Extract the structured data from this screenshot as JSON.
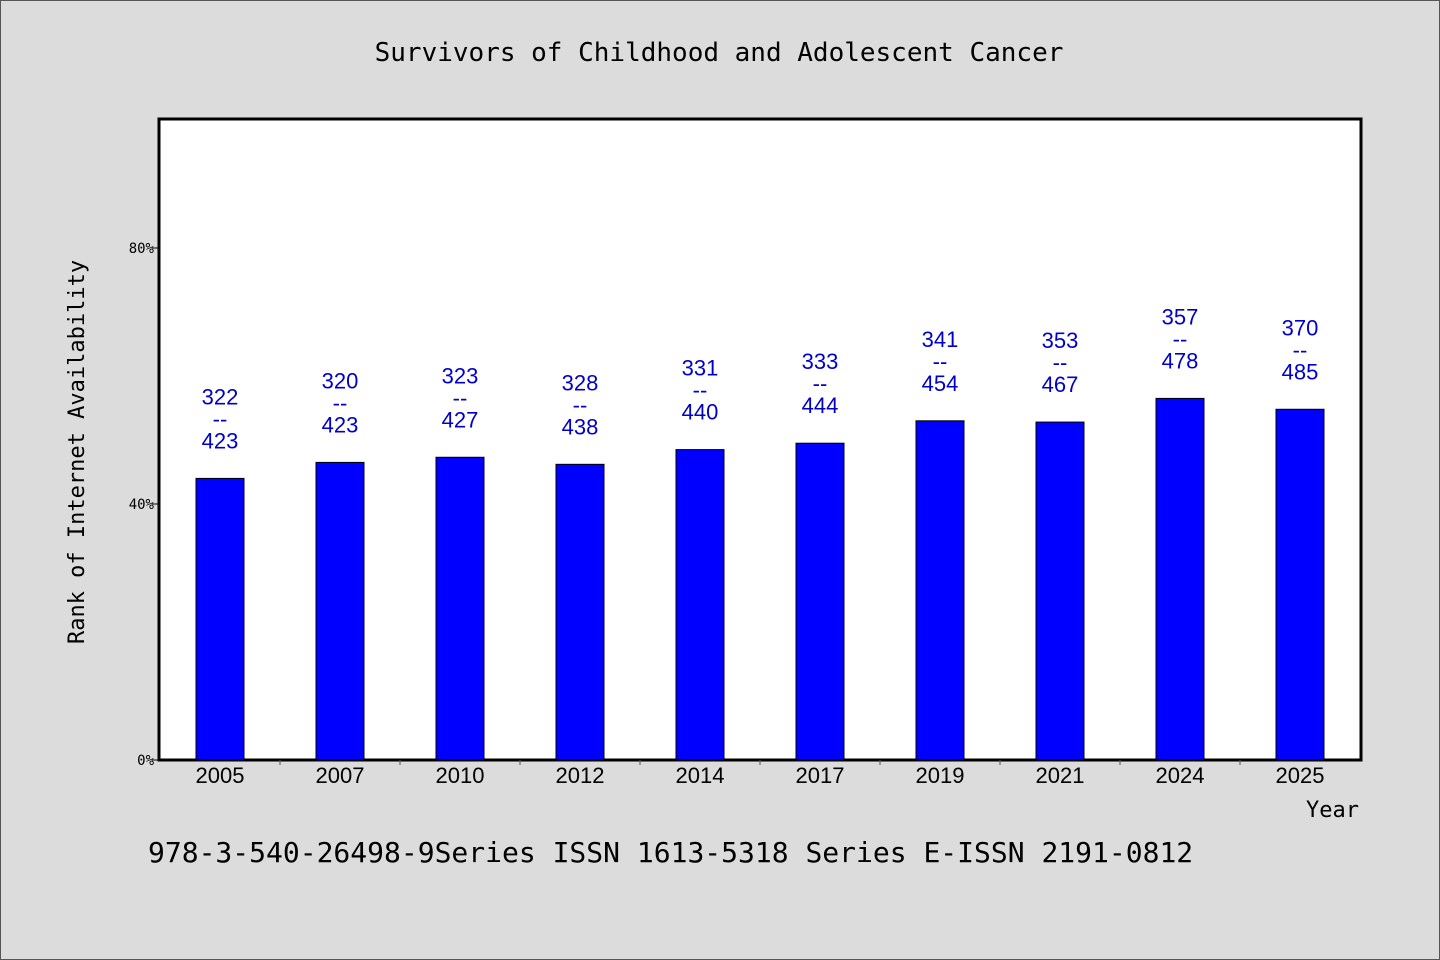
{
  "chart_data": {
    "type": "bar",
    "title": "Survivors of Childhood and Adolescent Cancer",
    "xlabel": "Year",
    "ylabel": "Rank of Internet Availability",
    "categories": [
      "2005",
      "2007",
      "2010",
      "2012",
      "2014",
      "2017",
      "2019",
      "2021",
      "2024",
      "2025"
    ],
    "values": [
      44.0,
      46.5,
      47.3,
      46.2,
      48.5,
      49.5,
      53.0,
      52.8,
      56.5,
      54.8
    ],
    "annotations": [
      {
        "top": "322",
        "sep": "--",
        "bottom": "423"
      },
      {
        "top": "320",
        "sep": "--",
        "bottom": "423"
      },
      {
        "top": "323",
        "sep": "--",
        "bottom": "427"
      },
      {
        "top": "328",
        "sep": "--",
        "bottom": "438"
      },
      {
        "top": "331",
        "sep": "--",
        "bottom": "440"
      },
      {
        "top": "333",
        "sep": "--",
        "bottom": "444"
      },
      {
        "top": "341",
        "sep": "--",
        "bottom": "454"
      },
      {
        "top": "353",
        "sep": "--",
        "bottom": "467"
      },
      {
        "top": "357",
        "sep": "--",
        "bottom": "478"
      },
      {
        "top": "370",
        "sep": "--",
        "bottom": "485"
      }
    ],
    "ylim": [
      0,
      100
    ],
    "yticks": [
      {
        "value": 0,
        "label": "0%"
      },
      {
        "value": 40,
        "label": "40%"
      },
      {
        "value": 80,
        "label": "80%"
      }
    ],
    "grid": false,
    "colors": {
      "bar": "#0000ff",
      "annotation": "#0000cc",
      "background": "#dcdcdc",
      "plot_background": "#ffffff"
    }
  },
  "footer": "978-3-540-26498-9Series ISSN 1613-5318 Series E-ISSN 2191-0812"
}
